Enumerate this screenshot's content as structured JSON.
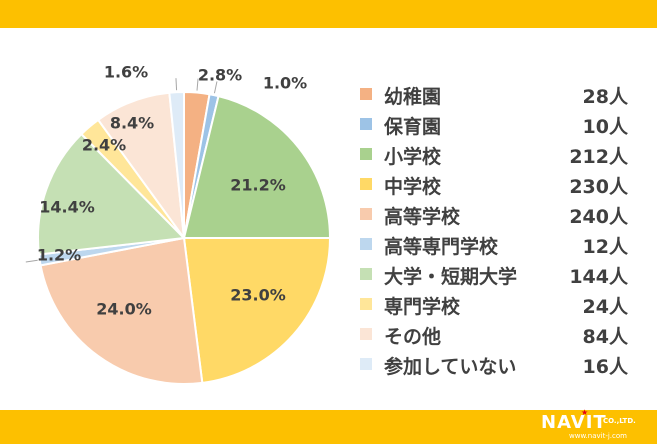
{
  "chart_data": {
    "type": "pie",
    "title": "",
    "start_angle_deg": 0,
    "direction": "clockwise",
    "slices": [
      {
        "label": "幼稚園",
        "count_label": "28人",
        "value": 2.8,
        "pct_label": "2.8%",
        "color": "#f4b183"
      },
      {
        "label": "保育園",
        "count_label": "10人",
        "value": 1.0,
        "pct_label": "1.0%",
        "color": "#9dc3e6"
      },
      {
        "label": "小学校",
        "count_label": "212人",
        "value": 21.2,
        "pct_label": "21.2%",
        "color": "#a9d18e"
      },
      {
        "label": "中学校",
        "count_label": "230人",
        "value": 23.0,
        "pct_label": "23.0%",
        "color": "#ffd966"
      },
      {
        "label": "高等学校",
        "count_label": "240人",
        "value": 24.0,
        "pct_label": "24.0%",
        "color": "#f8cbad"
      },
      {
        "label": "高等専門学校",
        "count_label": "12人",
        "value": 1.2,
        "pct_label": "1.2%",
        "color": "#bdd7ee"
      },
      {
        "label": "大学・短期大学",
        "count_label": "144人",
        "value": 14.4,
        "pct_label": "14.4%",
        "color": "#c5e0b4"
      },
      {
        "label": "専門学校",
        "count_label": "24人",
        "value": 2.4,
        "pct_label": "2.4%",
        "color": "#ffe699"
      },
      {
        "label": "その他",
        "count_label": "84人",
        "value": 8.4,
        "pct_label": "8.4%",
        "color": "#fbe5d6"
      },
      {
        "label": "参加していない",
        "count_label": "16人",
        "value": 1.6,
        "pct_label": "1.6%",
        "color": "#deebf7"
      }
    ],
    "legend_position": "right"
  },
  "footer": {
    "logo_text": "NAVIT",
    "logo_suffix": "CO.,LTD.",
    "logo_url": "www.navit-j.com"
  },
  "colors": {
    "band": "#fdc000",
    "label_text": "#404040"
  }
}
